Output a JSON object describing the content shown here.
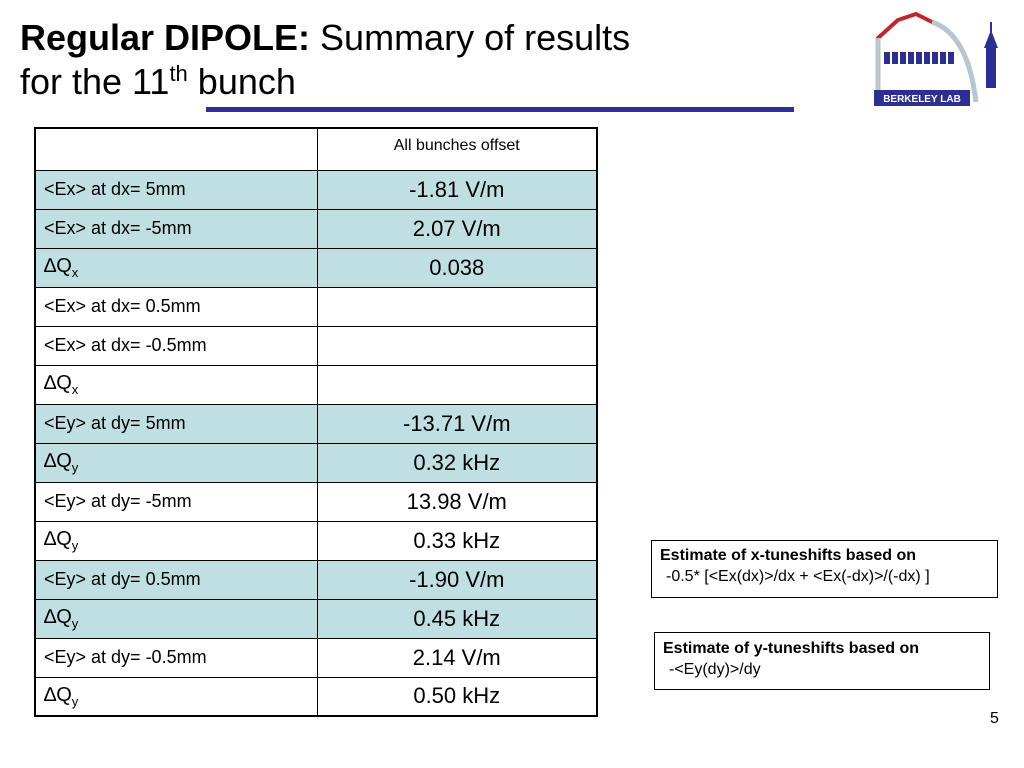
{
  "title": {
    "bold": "Regular DIPOLE:",
    "rest": " Summary of results",
    "line2_prefix": "for the 11",
    "line2_sup": "th",
    "line2_suffix": " bunch"
  },
  "logo": {
    "text": "BERKELEY LAB",
    "colors": {
      "primary": "#2b2f8f",
      "accent": "#c0262c"
    }
  },
  "table": {
    "header": {
      "label": "",
      "value": "All bunches offset"
    },
    "rows": [
      {
        "label": "<Ex> at dx= 5mm",
        "value": "-1.81 V/m",
        "alt": true
      },
      {
        "label": "<Ex> at dx= -5mm",
        "value": "2.07 V/m",
        "alt": true
      },
      {
        "sym": "∆Q",
        "sub": "x",
        "value": "0.038",
        "alt": true
      },
      {
        "label": "<Ex> at dx= 0.5mm",
        "value": "",
        "alt": false
      },
      {
        "label": "<Ex> at dx= -0.5mm",
        "value": "",
        "alt": false
      },
      {
        "sym": "∆Q",
        "sub": "x",
        "value": "",
        "alt": false
      },
      {
        "label": "<Ey> at dy= 5mm",
        "value": "-13.71 V/m",
        "alt": true
      },
      {
        "sym": "∆Q",
        "sub": "y",
        "value": "0.32 kHz",
        "alt": true
      },
      {
        "label": "<Ey> at dy= -5mm",
        "value": "13.98 V/m",
        "alt": false
      },
      {
        "sym": "∆Q",
        "sub": "y",
        "value": "0.33 kHz",
        "alt": false
      },
      {
        "label": "<Ey> at dy= 0.5mm",
        "value": "-1.90 V/m",
        "alt": true
      },
      {
        "sym": "∆Q",
        "sub": "y",
        "value": "0.45 kHz",
        "alt": true
      },
      {
        "label": "<Ey> at dy= -0.5mm",
        "value": "2.14 V/m",
        "alt": false
      },
      {
        "sym": "∆Q",
        "sub": "y",
        "value": "0.50 kHz",
        "alt": false
      }
    ],
    "colors": {
      "highlight": "#bfdfe3",
      "plain": "#ffffff"
    }
  },
  "notes": {
    "x": {
      "title": "Estimate of x-tuneshifts based on",
      "formula": "-0.5* [<Ex(dx)>/dx + <Ex(-dx)>/(-dx) ]"
    },
    "y": {
      "title": "Estimate of y-tuneshifts based on",
      "formula": "-<Ey(dy)>/dy"
    }
  },
  "page_number": "5"
}
